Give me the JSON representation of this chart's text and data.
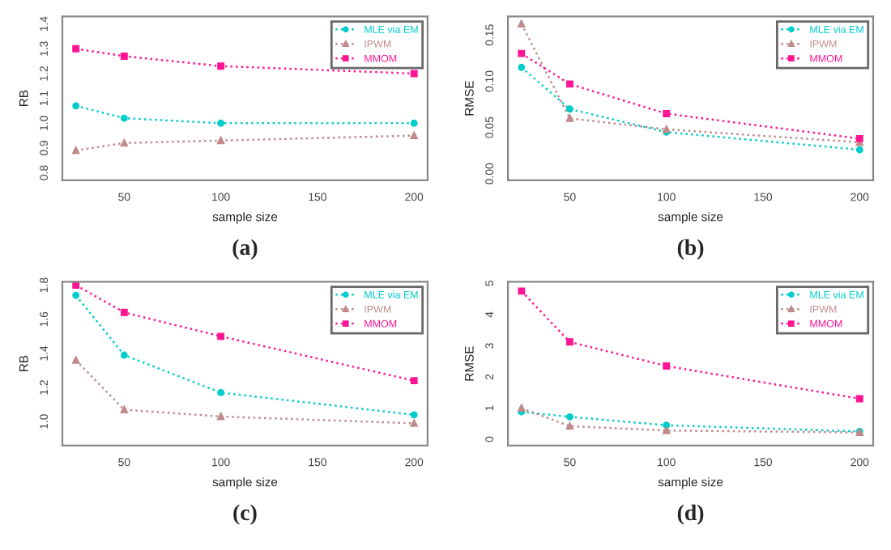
{
  "chart_data": [
    {
      "type": "line",
      "xlabel": "sample size",
      "ylabel": "RB",
      "x": [
        25,
        50,
        100,
        200
      ],
      "xlim": [
        18,
        207
      ],
      "xticks": [
        50,
        100,
        150,
        200
      ],
      "ylim": [
        0.77,
        1.43
      ],
      "yticks": [
        0.8,
        0.9,
        {
          "value": 1.0,
          "label": "1.0"
        },
        1.1,
        1.2,
        1.3,
        1.4
      ],
      "legend": "top right",
      "line_style": "dotted",
      "grid": false,
      "annotations": [
        "(a)"
      ],
      "series": [
        {
          "name": "MLE via EM",
          "color": "#00cccc",
          "marker": "circle",
          "values": [
            1.07,
            1.02,
            1.0,
            1.0
          ]
        },
        {
          "name": "IPWM",
          "color": "#c08a8a",
          "marker": "triangle",
          "values": [
            0.89,
            0.92,
            0.93,
            0.95
          ]
        },
        {
          "name": "MMOM",
          "color": "#ff1493",
          "marker": "square",
          "values": [
            1.3,
            1.27,
            1.23,
            1.2
          ]
        }
      ]
    },
    {
      "type": "line",
      "xlabel": "sample size",
      "ylabel": "RMSE",
      "x": [
        25,
        50,
        100,
        200
      ],
      "xlim": [
        18,
        207
      ],
      "xticks": [
        50,
        100,
        150,
        200
      ],
      "ylim": [
        -0.007,
        0.17
      ],
      "yticks": [
        {
          "value": 0.0,
          "label": "0.00"
        },
        0.05,
        {
          "value": 0.1,
          "label": "0.10"
        },
        0.15
      ],
      "legend": "top right",
      "line_style": "dotted",
      "grid": false,
      "annotations": [
        "(b)"
      ],
      "series": [
        {
          "name": "MLE via EM",
          "color": "#00cccc",
          "marker": "circle",
          "values": [
            0.115,
            0.07,
            0.045,
            0.026
          ]
        },
        {
          "name": "IPWM",
          "color": "#c08a8a",
          "marker": "triangle",
          "values": [
            0.162,
            0.06,
            0.048,
            0.034
          ]
        },
        {
          "name": "MMOM",
          "color": "#ff1493",
          "marker": "square",
          "values": [
            0.13,
            0.097,
            0.065,
            0.038
          ]
        }
      ]
    },
    {
      "type": "line",
      "xlabel": "sample size",
      "ylabel": "RB",
      "x": [
        25,
        50,
        100,
        200
      ],
      "xlim": [
        18,
        207
      ],
      "xticks": [
        50,
        100,
        150,
        200
      ],
      "ylim": [
        0.86,
        1.82
      ],
      "yticks": [
        {
          "value": 1.0,
          "label": "1.0"
        },
        1.2,
        1.4,
        1.6,
        1.8
      ],
      "legend": "top right",
      "line_style": "dotted",
      "grid": false,
      "annotations": [
        "(c)"
      ],
      "series": [
        {
          "name": "MLE via EM",
          "color": "#00cccc",
          "marker": "circle",
          "values": [
            1.74,
            1.39,
            1.17,
            1.04
          ]
        },
        {
          "name": "IPWM",
          "color": "#c08a8a",
          "marker": "triangle",
          "values": [
            1.36,
            1.07,
            1.03,
            0.99
          ]
        },
        {
          "name": "MMOM",
          "color": "#ff1493",
          "marker": "square",
          "values": [
            1.8,
            1.64,
            1.5,
            1.24
          ]
        }
      ]
    },
    {
      "type": "line",
      "xlabel": "sample size",
      "ylabel": "RMSE",
      "x": [
        25,
        50,
        100,
        200
      ],
      "xlim": [
        18,
        207
      ],
      "xticks": [
        50,
        100,
        150,
        200
      ],
      "ylim": [
        -0.2,
        5.05
      ],
      "yticks": [
        0,
        1,
        2,
        3,
        4,
        5
      ],
      "legend": "top right",
      "line_style": "dotted",
      "grid": false,
      "annotations": [
        "(d)"
      ],
      "series": [
        {
          "name": "MLE via EM",
          "color": "#00cccc",
          "marker": "circle",
          "values": [
            0.88,
            0.72,
            0.45,
            0.25
          ]
        },
        {
          "name": "IPWM",
          "color": "#c08a8a",
          "marker": "triangle",
          "values": [
            1.0,
            0.42,
            0.28,
            0.22
          ]
        },
        {
          "name": "MMOM",
          "color": "#ff1493",
          "marker": "square",
          "values": [
            4.75,
            3.12,
            2.35,
            1.3
          ]
        }
      ]
    }
  ]
}
